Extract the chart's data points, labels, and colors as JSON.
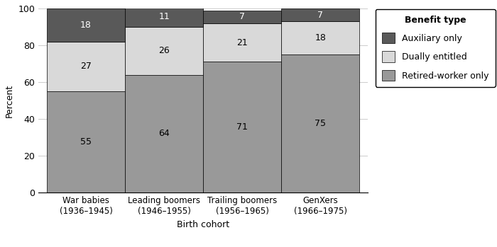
{
  "categories": [
    "War babies\n(1936–1945)",
    "Leading boomers\n(1946–1955)",
    "Trailing boomers\n(1956–1965)",
    "GenXers\n(1966–1975)"
  ],
  "retired_worker": [
    55,
    64,
    71,
    75
  ],
  "dually_entitled": [
    27,
    26,
    21,
    18
  ],
  "auxiliary_only": [
    18,
    11,
    7,
    7
  ],
  "color_retired": "#999999",
  "color_dually": "#d9d9d9",
  "color_auxiliary": "#595959",
  "ylabel": "Percent",
  "xlabel": "Birth cohort",
  "legend_title": "Benefit type",
  "legend_labels": [
    "Auxiliary only",
    "Dually entitled",
    "Retired-worker only"
  ],
  "ylim": [
    0,
    100
  ],
  "yticks": [
    0,
    20,
    40,
    60,
    80,
    100
  ],
  "bar_width": 0.28
}
